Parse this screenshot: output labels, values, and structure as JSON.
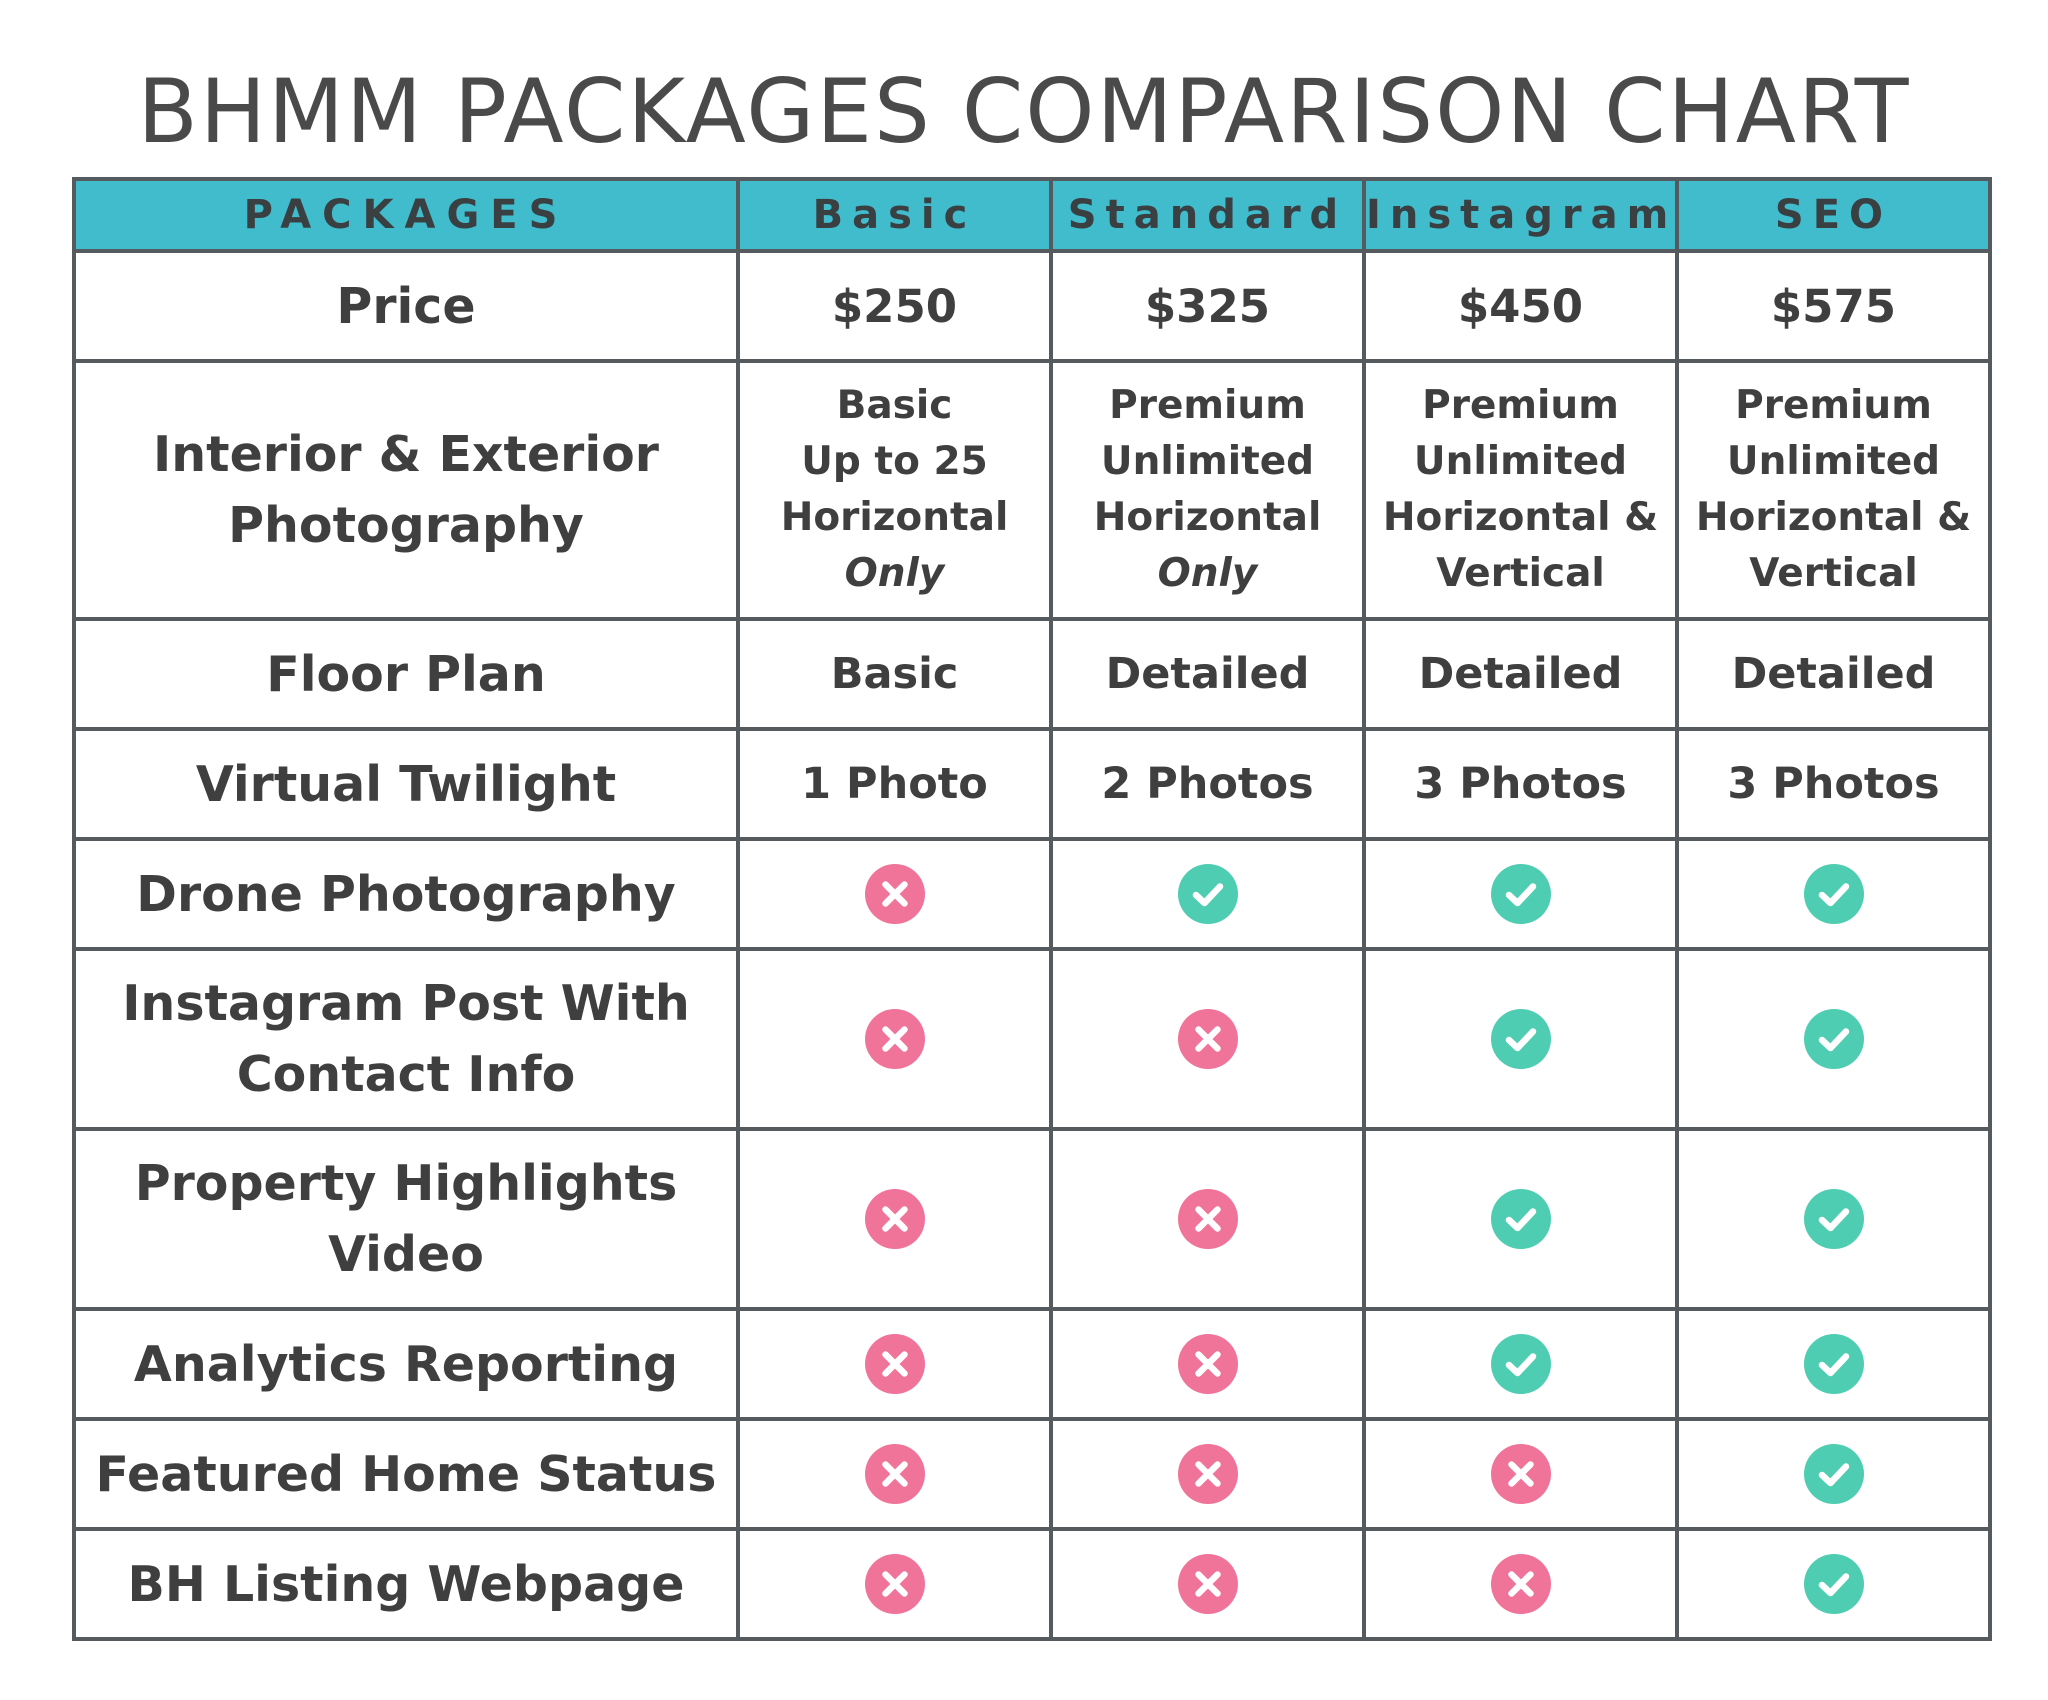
{
  "title": "BHMM PACKAGES COMPARISON CHART",
  "colors": {
    "header_bg": "#41bccd",
    "border": "#555a5e",
    "text": "#3f3f3f",
    "yes": "#4fcdb2",
    "no": "#f0739a"
  },
  "header": [
    "PACKAGES",
    "Basic",
    "Standard",
    "Instagram",
    "SEO"
  ],
  "rows": [
    {
      "feature": [
        "Price"
      ],
      "kind": "text",
      "values": [
        [
          "$250"
        ],
        [
          "$325"
        ],
        [
          "$450"
        ],
        [
          "$575"
        ]
      ]
    },
    {
      "feature": [
        "Interior & Exterior",
        "Photography"
      ],
      "kind": "text",
      "values": [
        [
          "Basic",
          "Up to 25",
          "Horizontal",
          "Only"
        ],
        [
          "Premium",
          "Unlimited",
          "Horizontal",
          "Only"
        ],
        [
          "Premium",
          "Unlimited",
          "Horizontal &",
          "Vertical"
        ],
        [
          "Premium",
          "Unlimited",
          "Horizontal &",
          "Vertical"
        ]
      ]
    },
    {
      "feature": [
        "Floor Plan"
      ],
      "kind": "text",
      "values": [
        [
          "Basic"
        ],
        [
          "Detailed"
        ],
        [
          "Detailed"
        ],
        [
          "Detailed"
        ]
      ]
    },
    {
      "feature": [
        "Virtual Twilight"
      ],
      "kind": "text",
      "values": [
        [
          "1 Photo"
        ],
        [
          "2 Photos"
        ],
        [
          "3 Photos"
        ],
        [
          "3 Photos"
        ]
      ]
    },
    {
      "feature": [
        "Drone Photography"
      ],
      "kind": "check",
      "values": [
        false,
        true,
        true,
        true
      ]
    },
    {
      "feature": [
        "Instagram Post With",
        "Contact Info"
      ],
      "kind": "check",
      "values": [
        false,
        false,
        true,
        true
      ]
    },
    {
      "feature": [
        "Property Highlights",
        "Video"
      ],
      "kind": "check",
      "values": [
        false,
        false,
        true,
        true
      ]
    },
    {
      "feature": [
        "Analytics Reporting"
      ],
      "kind": "check",
      "values": [
        false,
        false,
        true,
        true
      ]
    },
    {
      "feature": [
        "Featured Home Status"
      ],
      "kind": "check",
      "values": [
        false,
        false,
        false,
        true
      ]
    },
    {
      "feature": [
        "BH Listing Webpage"
      ],
      "kind": "check",
      "values": [
        false,
        false,
        false,
        true
      ]
    }
  ]
}
